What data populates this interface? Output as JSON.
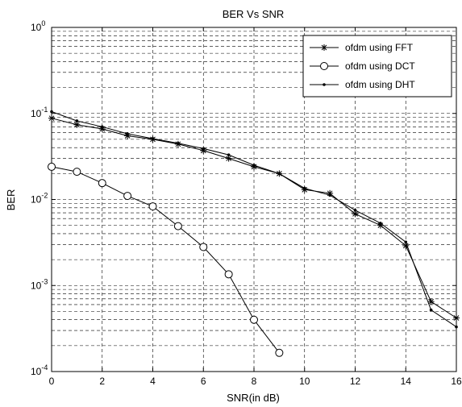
{
  "chart_data": {
    "type": "line",
    "title": "BER Vs SNR",
    "xlabel": "SNR(in dB)",
    "ylabel": "BER",
    "xlim": [
      0,
      16
    ],
    "ylim": [
      0.0001,
      1
    ],
    "yscale": "log",
    "grid": true,
    "legend_position": "top-right",
    "x_ticks": [
      0,
      2,
      4,
      6,
      8,
      10,
      12,
      14,
      16
    ],
    "y_ticks": [
      {
        "base": "10",
        "exp": "-4"
      },
      {
        "base": "10",
        "exp": "-3"
      },
      {
        "base": "10",
        "exp": "-2"
      },
      {
        "base": "10",
        "exp": "-1"
      },
      {
        "base": "10",
        "exp": "0"
      }
    ],
    "series": [
      {
        "name": "ofdm using FFT",
        "marker": "star",
        "x": [
          0,
          1,
          2,
          3,
          4,
          5,
          6,
          7,
          8,
          9,
          10,
          11,
          12,
          13,
          14,
          15,
          16
        ],
        "y": [
          0.088,
          0.074,
          0.066,
          0.055,
          0.05,
          0.044,
          0.037,
          0.03,
          0.024,
          0.02,
          0.013,
          0.0118,
          0.0068,
          0.005,
          0.0029,
          0.00065,
          0.00042
        ]
      },
      {
        "name": "ofdm using DCT",
        "marker": "circle",
        "x": [
          0,
          1,
          2,
          3,
          4,
          5,
          6,
          7,
          8,
          9
        ],
        "y": [
          0.024,
          0.021,
          0.0155,
          0.011,
          0.0083,
          0.0049,
          0.0028,
          0.00135,
          0.0004,
          0.000165
        ]
      },
      {
        "name": "ofdm using DHT",
        "marker": "dot",
        "x": [
          0,
          1,
          2,
          3,
          4,
          5,
          6,
          7,
          8,
          9,
          10,
          11,
          12,
          13,
          14,
          15,
          16
        ],
        "y": [
          0.105,
          0.082,
          0.07,
          0.058,
          0.051,
          0.045,
          0.039,
          0.033,
          0.025,
          0.02,
          0.0135,
          0.0112,
          0.0075,
          0.0053,
          0.0032,
          0.00052,
          0.00033
        ]
      }
    ]
  }
}
